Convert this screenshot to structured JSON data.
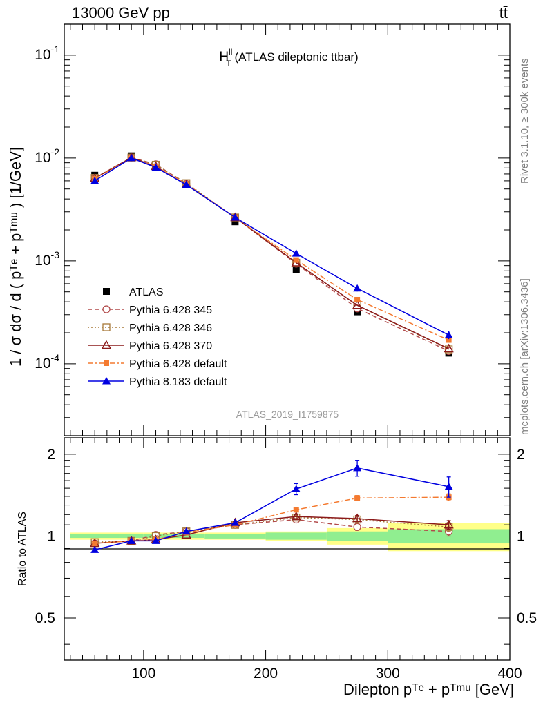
{
  "header": {
    "left": "13000 GeV pp",
    "right": "tt̄"
  },
  "side_texts": {
    "rivet": "Rivet 3.1.10, ≥ 300k events",
    "mcplots": "mcplots.cern.ch [arXiv:1306.3436]"
  },
  "watermark": "ATLAS_2019_I1759875",
  "main_title": {
    "base": "H",
    "sup": "ll",
    "sub": "T",
    "rest": " (ATLAS dileptonic ttbar)"
  },
  "ylabel_main": "1 / σ  dσ / d ( pᵀᵉ + pᵀᵐᵘ ) [1/GeV]",
  "ylabel_ratio": "Ratio to ATLAS",
  "xlabel": "Dilepton pᵀᵉ + pᵀᵐᵘ [GeV]",
  "legend": [
    "ATLAS",
    "Pythia 6.428 345",
    "Pythia 6.428 346",
    "Pythia 6.428 370",
    "Pythia 6.428 default",
    "Pythia 8.183 default"
  ],
  "chart_data": {
    "type": "line",
    "title": "H_T^ll (ATLAS dileptonic ttbar)",
    "xlabel": "Dilepton p_T^e + p_T^mu [GeV]",
    "ylabel": "1 / sigma dsigma / d ( p_T^e + p_T^mu ) [1/GeV]",
    "xlim": [
      35,
      400
    ],
    "ylim": [
      2e-05,
      0.2
    ],
    "ratio_ylim": [
      0.35,
      2.3
    ],
    "x_ticks": [
      100,
      200,
      300,
      400
    ],
    "y_ticks": [
      "10^-4",
      "10^-3",
      "10^-2",
      "10^-1"
    ],
    "ratio_ticks": [
      0.5,
      1,
      2
    ],
    "x": [
      60,
      90,
      110,
      135,
      175,
      225,
      275,
      350
    ],
    "bin_edges": [
      40,
      80,
      100,
      120,
      150,
      200,
      250,
      300,
      400
    ],
    "data": {
      "name": "ATLAS",
      "values": [
        0.0068,
        0.0105,
        0.0086,
        0.0055,
        0.0024,
        0.00082,
        0.00032,
        0.000127
      ]
    },
    "data_band_inner": [
      0.015,
      0.015,
      0.015,
      0.015,
      0.02,
      0.03,
      0.04,
      0.06
    ],
    "data_band_outer": [
      0.03,
      0.03,
      0.03,
      0.03,
      0.03,
      0.04,
      0.07,
      0.12
    ],
    "series": [
      {
        "name": "Pythia 6.428 345",
        "values": [
          0.0064,
          0.0101,
          0.0087,
          0.0056,
          0.00264,
          0.00094,
          0.000345,
          0.000133
        ]
      },
      {
        "name": "Pythia 6.428 346",
        "values": [
          0.0064,
          0.0101,
          0.0086,
          0.0057,
          0.00264,
          0.00096,
          0.00037,
          0.000138
        ]
      },
      {
        "name": "Pythia 6.428 370",
        "values": [
          0.00635,
          0.0101,
          0.0083,
          0.0055,
          0.00264,
          0.00096,
          0.00037,
          0.00014
        ]
      },
      {
        "name": "Pythia 6.428 default",
        "values": [
          0.0063,
          0.0099,
          0.0083,
          0.0056,
          0.00264,
          0.00102,
          0.00042,
          0.00017
        ]
      },
      {
        "name": "Pythia 8.183 default",
        "values": [
          0.006,
          0.01,
          0.0081,
          0.0055,
          0.00264,
          0.00118,
          0.00054,
          0.00019
        ]
      }
    ],
    "ratios": [
      [
        0.94,
        0.96,
        1.01,
        1.04,
        1.1,
        1.15,
        1.08,
        1.04
      ],
      [
        0.95,
        0.96,
        1.0,
        1.04,
        1.1,
        1.17,
        1.15,
        1.08
      ],
      [
        0.94,
        0.96,
        0.97,
        1.01,
        1.12,
        1.18,
        1.16,
        1.1
      ],
      [
        0.94,
        0.96,
        0.97,
        1.03,
        1.1,
        1.25,
        1.38,
        1.39
      ],
      [
        0.89,
        0.96,
        0.96,
        1.04,
        1.12,
        1.49,
        1.78,
        1.52
      ]
    ],
    "ratio_errors": [
      [
        0,
        0,
        0,
        0,
        0,
        0.02,
        0.03,
        0.04
      ],
      [
        0,
        0,
        0,
        0,
        0,
        0.02,
        0.03,
        0.04
      ],
      [
        0,
        0,
        0,
        0,
        0,
        0.02,
        0.03,
        0.04
      ],
      [
        0,
        0,
        0,
        0,
        0,
        0.02,
        0.03,
        0.04
      ],
      [
        0,
        0,
        0,
        0,
        0,
        0.07,
        0.12,
        0.13
      ]
    ],
    "colors": [
      "#b24a4a",
      "#a87a3a",
      "#8b1a1a",
      "#f47a30",
      "#0000e0"
    ],
    "band_colors": {
      "inner": "#90ee90",
      "outer": "#ffff88"
    }
  }
}
